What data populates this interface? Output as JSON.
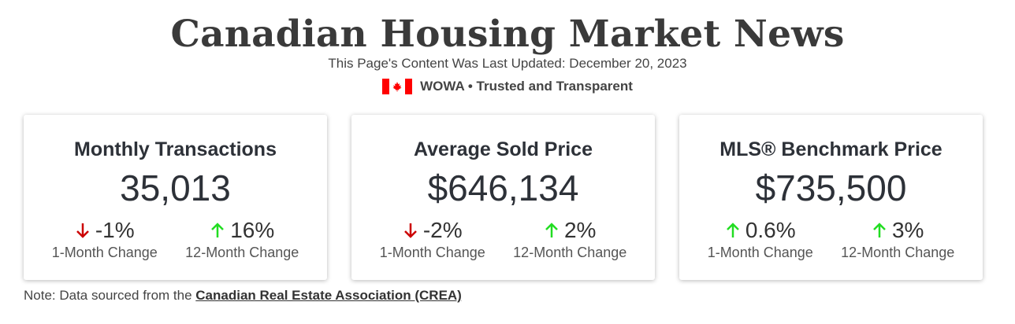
{
  "header": {
    "title": "Canadian Housing Market News",
    "updated": "This Page's Content Was Last Updated: December 20, 2023",
    "brand": "WOWA • Trusted and Transparent"
  },
  "colors": {
    "up": "#22dd22",
    "down": "#cc0000",
    "flag_red": "#ff0000"
  },
  "cards": [
    {
      "title": "Monthly Transactions",
      "value": "35,013",
      "changes": [
        {
          "value": "-1%",
          "direction": "down",
          "label": "1-Month Change"
        },
        {
          "value": "16%",
          "direction": "up",
          "label": "12-Month Change"
        }
      ]
    },
    {
      "title": "Average Sold Price",
      "value": "$646,134",
      "changes": [
        {
          "value": "-2%",
          "direction": "down",
          "label": "1-Month Change"
        },
        {
          "value": "2%",
          "direction": "up",
          "label": "12-Month Change"
        }
      ]
    },
    {
      "title": "MLS® Benchmark Price",
      "value": "$735,500",
      "changes": [
        {
          "value": "0.6%",
          "direction": "up",
          "label": "1-Month Change"
        },
        {
          "value": "3%",
          "direction": "up",
          "label": "12-Month Change"
        }
      ]
    }
  ],
  "note": {
    "prefix": "Note: Data sourced from the ",
    "link": "Canadian Real Estate Association (CREA)"
  },
  "icons": {
    "up": "arrow-up-icon",
    "down": "arrow-down-icon",
    "flag": "canada-flag-icon"
  }
}
